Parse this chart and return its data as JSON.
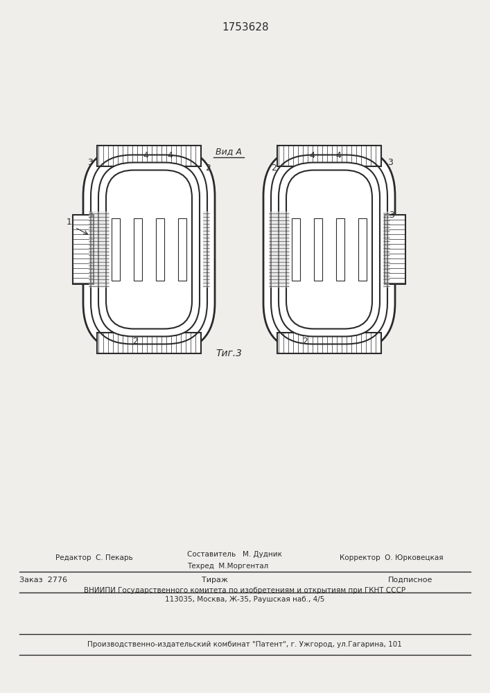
{
  "title": "1753628",
  "fig_label": "Τиг.3",
  "view_label": "Вид A",
  "background_color": "#f0eeea",
  "line_color": "#2a2a2a",
  "hatch_color": "#2a2a2a",
  "label_1": "1",
  "label_2": "2",
  "label_3": "3",
  "label_4": "4",
  "editor_line": "Редактор  С. Пекарь",
  "compiler_line": "Составитель   М. Дудник",
  "techred_line": "Техред  М.Моргентал",
  "corrector_line": "Корректор  О. Юрковецкая",
  "order_line": "Заказ  2776",
  "tirazh_line": "Тираж",
  "podpisnoe_line": "Подписное",
  "vniiipi_line": "ВНИИПИ Государственного комитета по изобретениям и открытиям при ГКНТ СССР",
  "address_line": "113035, Москва, Ж-35, Раушская наб., 4/5",
  "publisher_line": "Производственно-издательский комбинат \"Патент\", г. Ужгород, ул.Гагарина, 101"
}
